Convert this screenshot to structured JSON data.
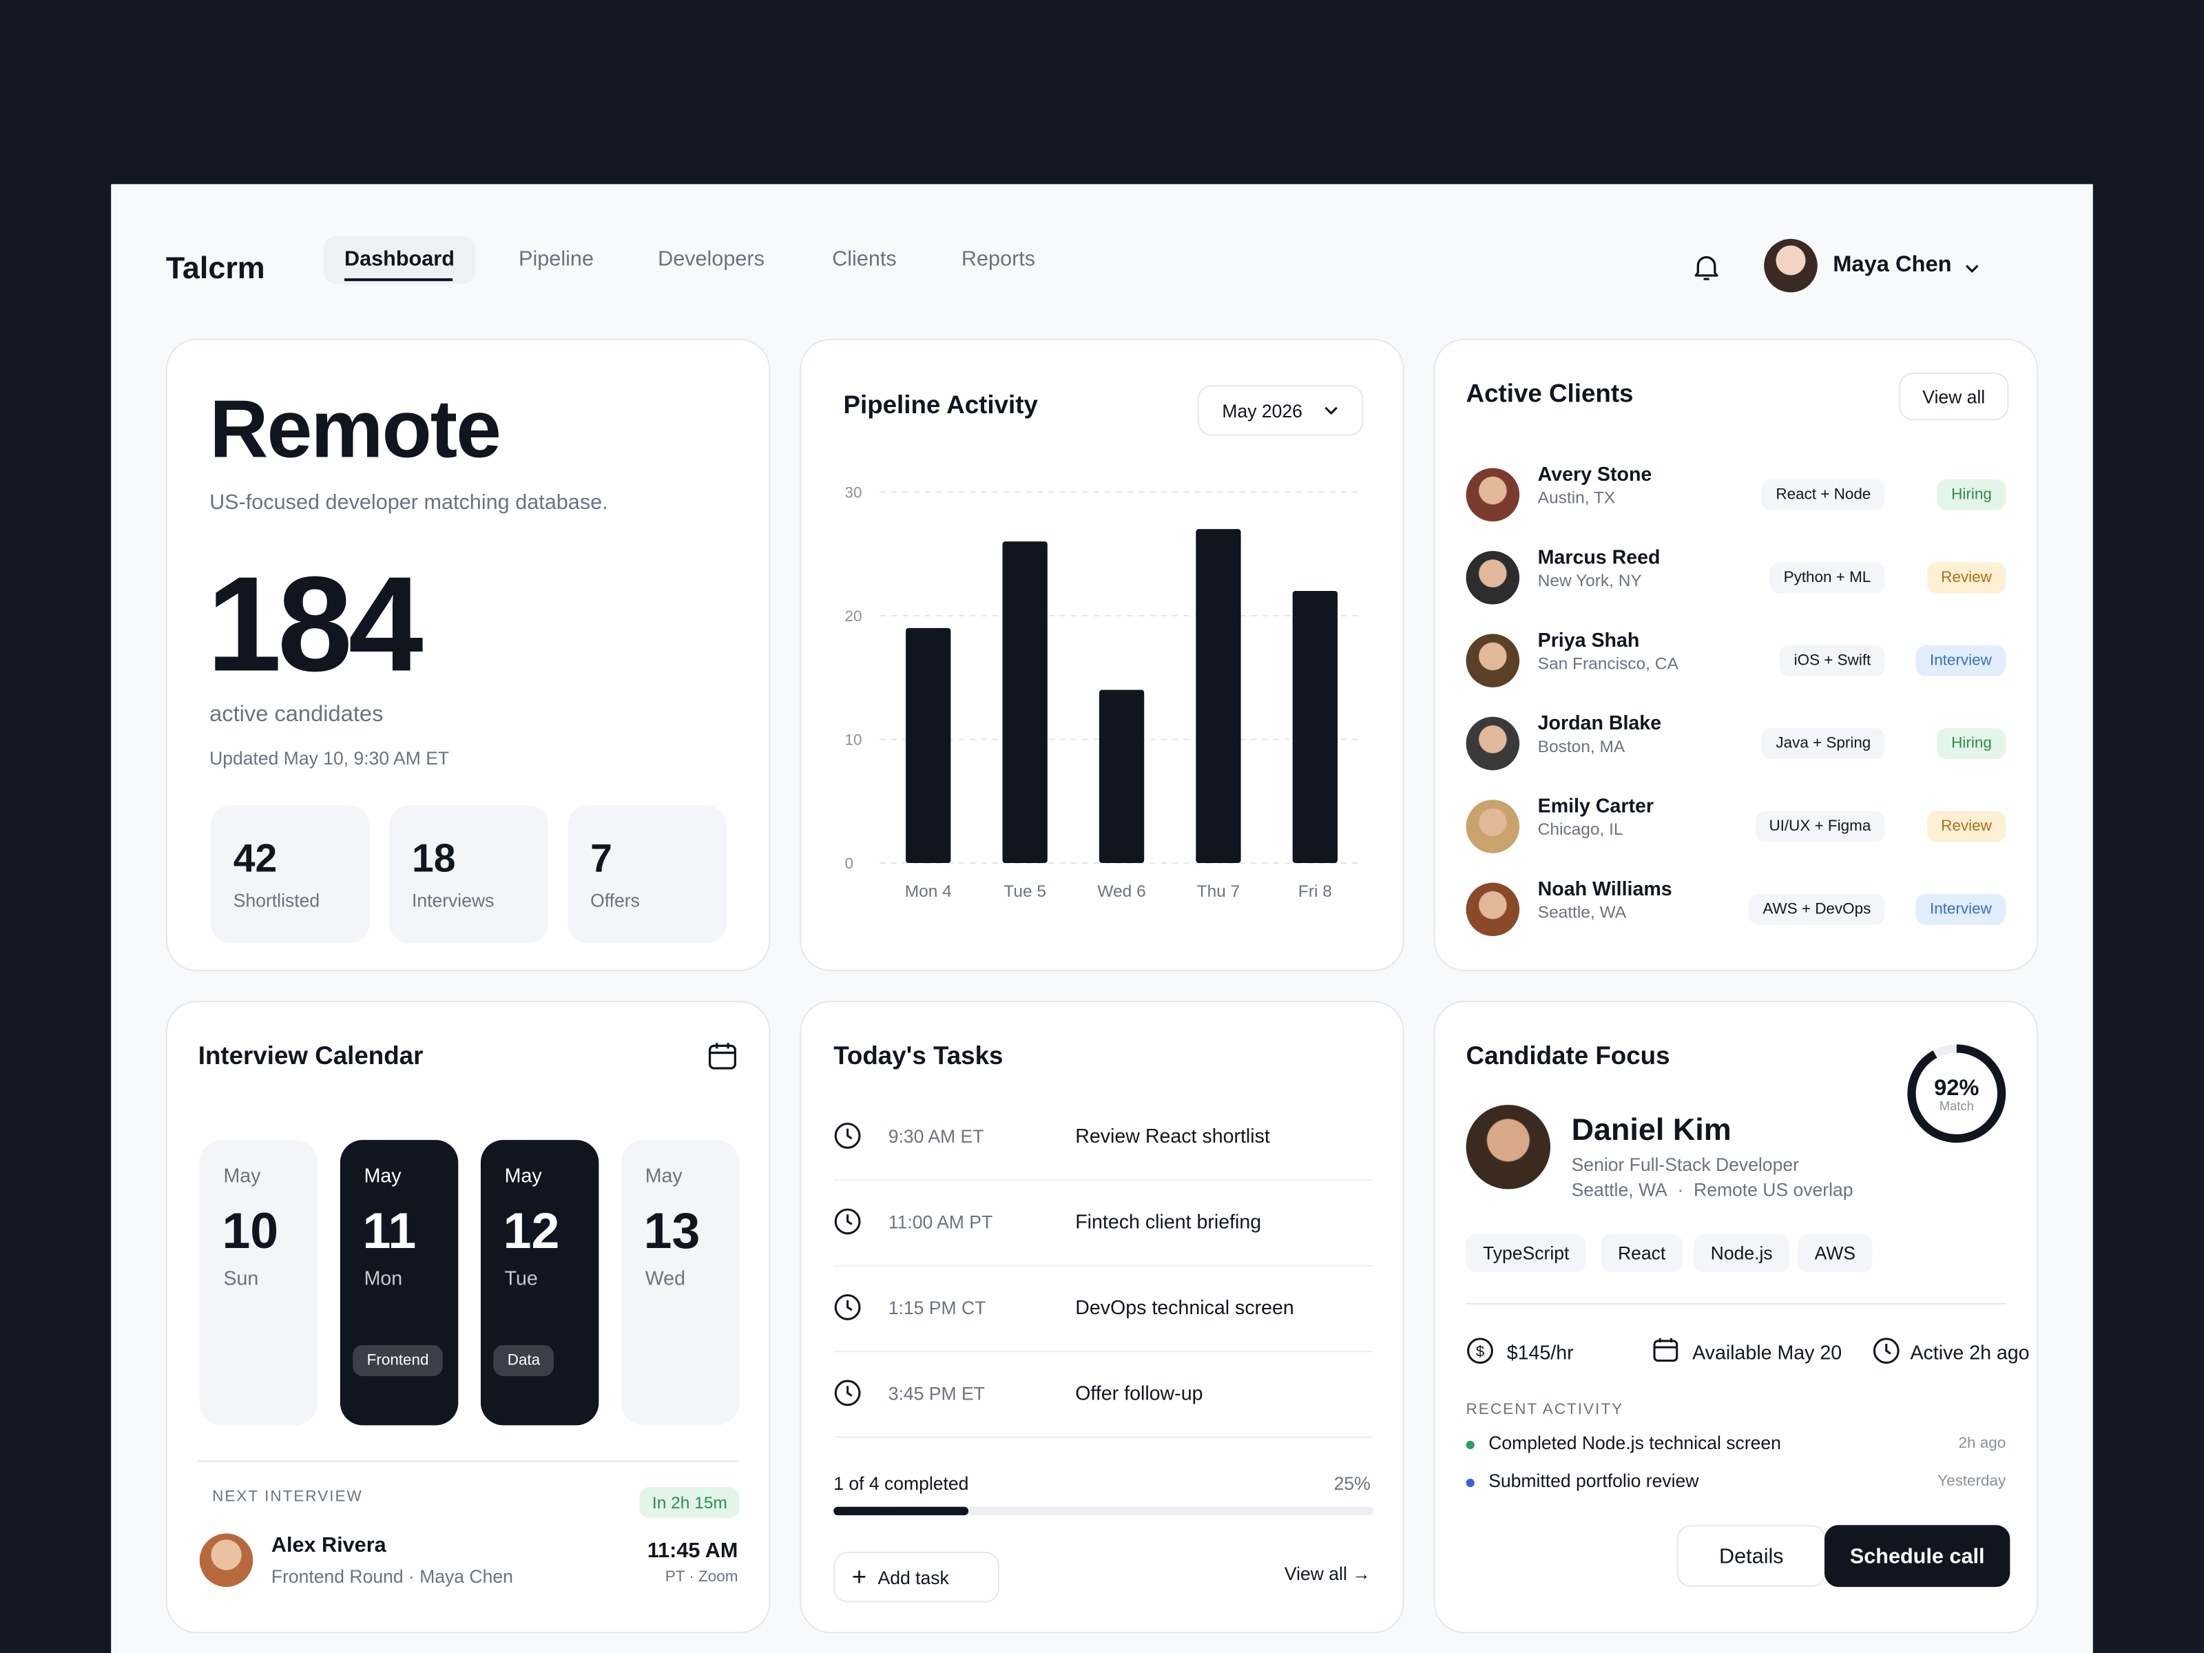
{
  "nav": {
    "brand": "Talcrm",
    "tabs": [
      "Dashboard",
      "Pipeline",
      "Developers",
      "Clients",
      "Reports"
    ],
    "user": "Maya Chen"
  },
  "summary": {
    "title": "Remote",
    "subtitle": "US-focused developer matching database.",
    "count": 184,
    "count_label": "active candidates",
    "updated": "Updated May 10, 9:30 AM ET",
    "stats": [
      {
        "value": 42,
        "label": "Shortlisted"
      },
      {
        "value": 18,
        "label": "Interviews"
      },
      {
        "value": 7,
        "label": "Offers"
      }
    ]
  },
  "pipeline_activity": {
    "type": "bar",
    "title": "Pipeline Activity",
    "period": "May 2026",
    "categories": [
      "Mon 4",
      "Tue 5",
      "Wed 6",
      "Thu 7",
      "Fri 8"
    ],
    "values": [
      19,
      26,
      14,
      27,
      22
    ],
    "ylim": [
      0,
      30
    ],
    "yticks": [
      0,
      10,
      20,
      30
    ],
    "color": "#111520",
    "grid": true
  },
  "active_clients": {
    "title": "Active Clients",
    "action": "View all",
    "clients": [
      {
        "name": "Avery Stone",
        "location": "Austin, TX",
        "stack": "React + Node",
        "status": "Hiring",
        "tone": "green"
      },
      {
        "name": "Marcus Reed",
        "location": "New York, NY",
        "stack": "Python + ML",
        "status": "Review",
        "tone": "amber"
      },
      {
        "name": "Priya Shah",
        "location": "San Francisco, CA",
        "stack": "iOS + Swift",
        "status": "Interview",
        "tone": "blue"
      },
      {
        "name": "Jordan Blake",
        "location": "Boston, MA",
        "stack": "Java + Spring",
        "status": "Hiring",
        "tone": "green"
      },
      {
        "name": "Emily Carter",
        "location": "Chicago, IL",
        "stack": "UI/UX + Figma",
        "status": "Review",
        "tone": "amber"
      },
      {
        "name": "Noah Williams",
        "location": "Seattle, WA",
        "stack": "AWS + DevOps",
        "status": "Interview",
        "tone": "blue"
      }
    ]
  },
  "calendar": {
    "title": "Interview Calendar",
    "days": [
      {
        "month": "May",
        "date": 10,
        "weekday": "Sun"
      },
      {
        "month": "May",
        "date": 11,
        "weekday": "Mon",
        "tag": "Frontend"
      },
      {
        "month": "May",
        "date": 12,
        "weekday": "Tue",
        "tag": "Data"
      },
      {
        "month": "May",
        "date": 13,
        "weekday": "Wed"
      }
    ],
    "next": {
      "label": "NEXT INTERVIEW",
      "countdown": "In 2h 15m",
      "name": "Alex Rivera",
      "detail": "Frontend Round · Maya Chen",
      "time": "11:45 AM",
      "place": "PT · Zoom"
    }
  },
  "tasks": {
    "title": "Today's Tasks",
    "items": [
      {
        "time": "9:30 AM ET",
        "task": "Review React shortlist"
      },
      {
        "time": "11:00 AM PT",
        "task": "Fintech client briefing"
      },
      {
        "time": "1:15 PM CT",
        "task": "DevOps technical screen"
      },
      {
        "time": "3:45 PM ET",
        "task": "Offer follow-up"
      }
    ],
    "progress_label": "1 of 4 completed",
    "progress": 25,
    "progress_text": "25%",
    "add": "Add task",
    "view_all": "View all →"
  },
  "candidate": {
    "title": "Candidate Focus",
    "match": 92,
    "match_text": "92%",
    "match_caption": "Match",
    "name": "Daniel Kim",
    "role": "Senior Full-Stack Developer",
    "location": "Seattle, WA",
    "overlap": "Remote US overlap",
    "skills": [
      "TypeScript",
      "React",
      "Node.js",
      "AWS"
    ],
    "rate": "$145/hr",
    "availability": "Available May 20",
    "active": "Active 2h ago",
    "activity_title": "RECENT ACTIVITY",
    "activity": [
      {
        "text": "Completed Node.js technical screen",
        "when": "2h ago",
        "dot": "#2f9e62"
      },
      {
        "text": "Submitted portfolio review",
        "when": "Yesterday",
        "dot": "#3b63d9"
      }
    ],
    "buttons": [
      "Details",
      "Schedule call"
    ]
  }
}
